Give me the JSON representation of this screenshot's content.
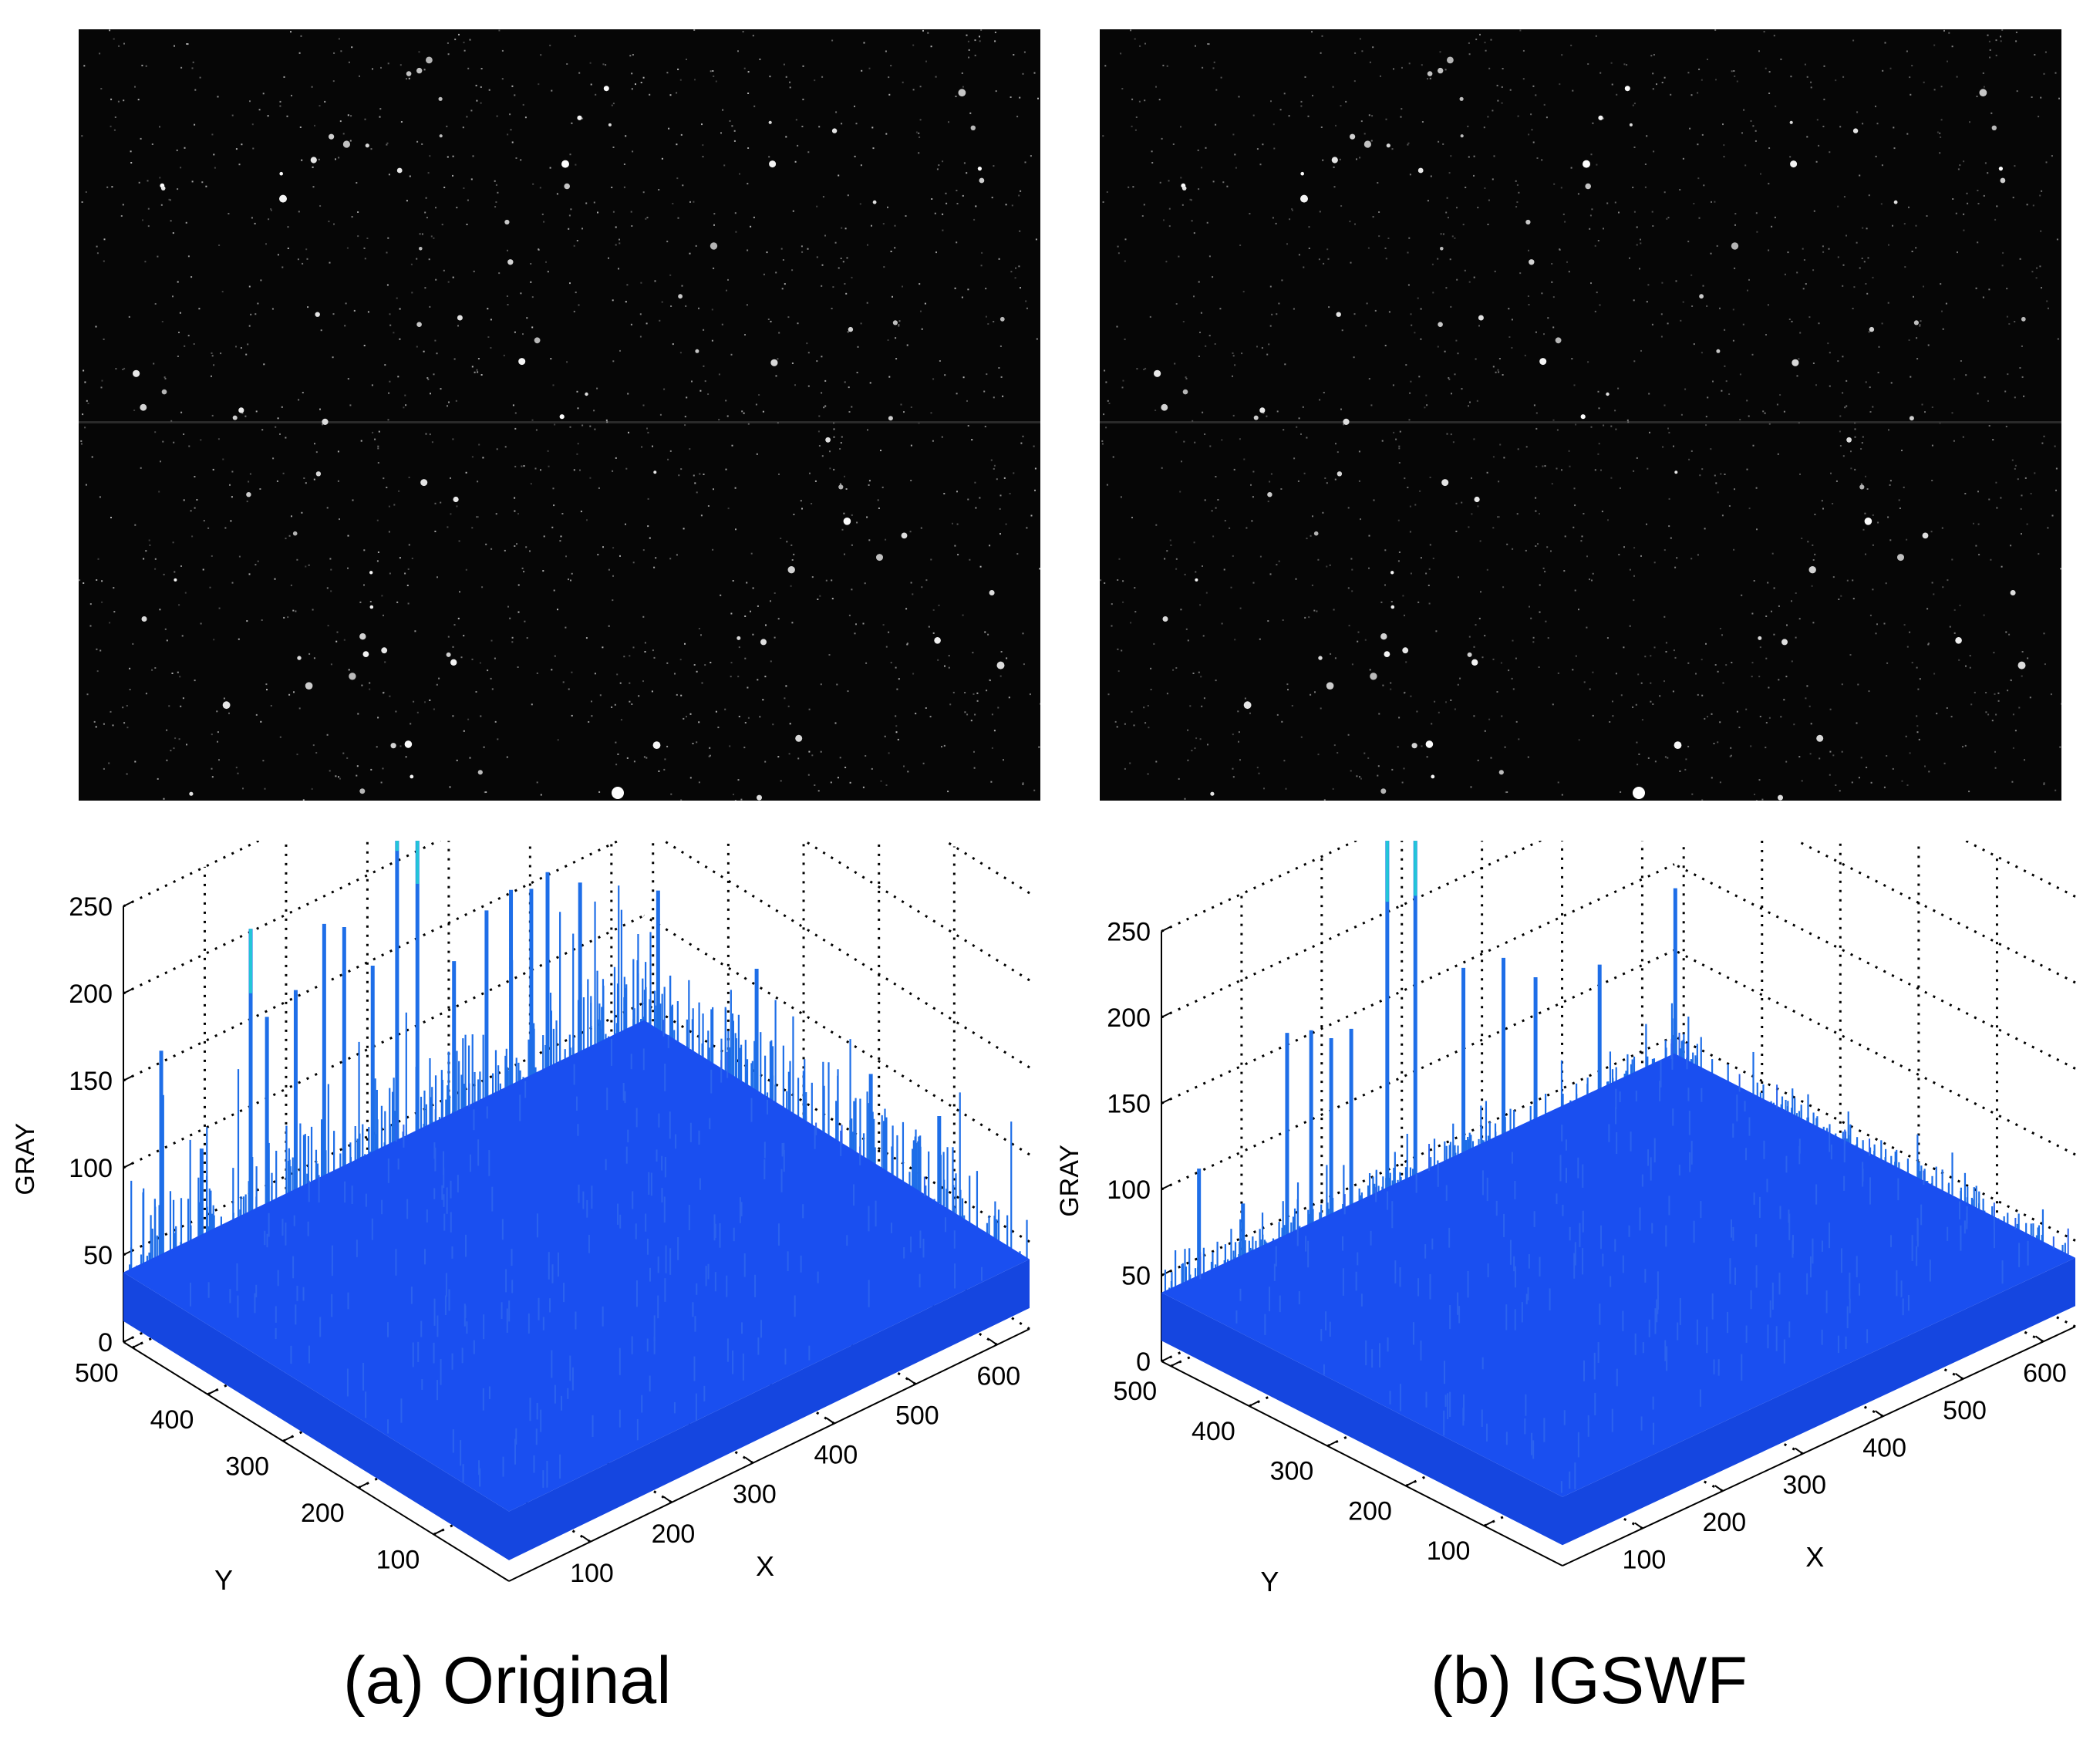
{
  "panels": [
    {
      "caption": "(a) Original"
    },
    {
      "caption": "(b) IGSWF"
    }
  ],
  "colors": {
    "surface": "#1a4ff0",
    "spike": "#1e6ee8",
    "spike_peak": "#22c6d8",
    "axis": "#000000",
    "grid": "#000000",
    "image_bg": "#060606"
  },
  "chart_data": [
    {
      "type": "surface3d",
      "title": "(a) Original",
      "xlabel": "X",
      "ylabel": "Y",
      "zlabel": "GRAY",
      "xlim": [
        0,
        640
      ],
      "ylim": [
        0,
        512
      ],
      "zlim": [
        0,
        250
      ],
      "xticks": [
        100,
        200,
        300,
        400,
        500,
        600
      ],
      "yticks": [
        100,
        200,
        300,
        400,
        500
      ],
      "zticks": [
        0,
        50,
        100,
        150,
        200,
        250
      ],
      "grid": true,
      "baseline_gray": 40,
      "spikes": [
        {
          "x": 40,
          "y": 505,
          "z": 160
        },
        {
          "x": 85,
          "y": 500,
          "z": 95
        },
        {
          "x": 150,
          "y": 505,
          "z": 205
        },
        {
          "x": 170,
          "y": 505,
          "z": 150
        },
        {
          "x": 210,
          "y": 510,
          "z": 155
        },
        {
          "x": 245,
          "y": 510,
          "z": 185
        },
        {
          "x": 265,
          "y": 505,
          "z": 180
        },
        {
          "x": 300,
          "y": 505,
          "z": 150
        },
        {
          "x": 330,
          "y": 505,
          "z": 255
        },
        {
          "x": 355,
          "y": 505,
          "z": 225
        },
        {
          "x": 400,
          "y": 505,
          "z": 130
        },
        {
          "x": 440,
          "y": 505,
          "z": 150
        },
        {
          "x": 470,
          "y": 505,
          "z": 155
        },
        {
          "x": 495,
          "y": 505,
          "z": 150
        },
        {
          "x": 515,
          "y": 505,
          "z": 155
        },
        {
          "x": 555,
          "y": 505,
          "z": 140
        },
        {
          "x": 600,
          "y": 450,
          "z": 140
        },
        {
          "x": 610,
          "y": 330,
          "z": 125
        },
        {
          "x": 630,
          "y": 200,
          "z": 95
        },
        {
          "x": 640,
          "y": 120,
          "z": 90
        }
      ]
    },
    {
      "type": "surface3d",
      "title": "(b) IGSWF",
      "xlabel": "X",
      "ylabel": "Y",
      "zlabel": "GRAY",
      "xlim": [
        0,
        640
      ],
      "ylim": [
        0,
        512
      ],
      "zlim": [
        0,
        250
      ],
      "xticks": [
        100,
        200,
        300,
        400,
        500,
        600
      ],
      "yticks": [
        100,
        200,
        300,
        400,
        500
      ],
      "zticks": [
        0,
        50,
        100,
        150,
        200,
        250
      ],
      "grid": true,
      "baseline_gray": 40,
      "spikes": [
        {
          "x": 40,
          "y": 505,
          "z": 105
        },
        {
          "x": 90,
          "y": 500,
          "z": 75
        },
        {
          "x": 150,
          "y": 505,
          "z": 160
        },
        {
          "x": 180,
          "y": 505,
          "z": 155
        },
        {
          "x": 205,
          "y": 505,
          "z": 145
        },
        {
          "x": 230,
          "y": 505,
          "z": 145
        },
        {
          "x": 275,
          "y": 505,
          "z": 255
        },
        {
          "x": 310,
          "y": 505,
          "z": 250
        },
        {
          "x": 370,
          "y": 505,
          "z": 150
        },
        {
          "x": 420,
          "y": 505,
          "z": 145
        },
        {
          "x": 460,
          "y": 505,
          "z": 125
        },
        {
          "x": 540,
          "y": 505,
          "z": 115
        },
        {
          "x": 610,
          "y": 480,
          "z": 150
        },
        {
          "x": 600,
          "y": 250,
          "z": 60
        }
      ]
    }
  ]
}
